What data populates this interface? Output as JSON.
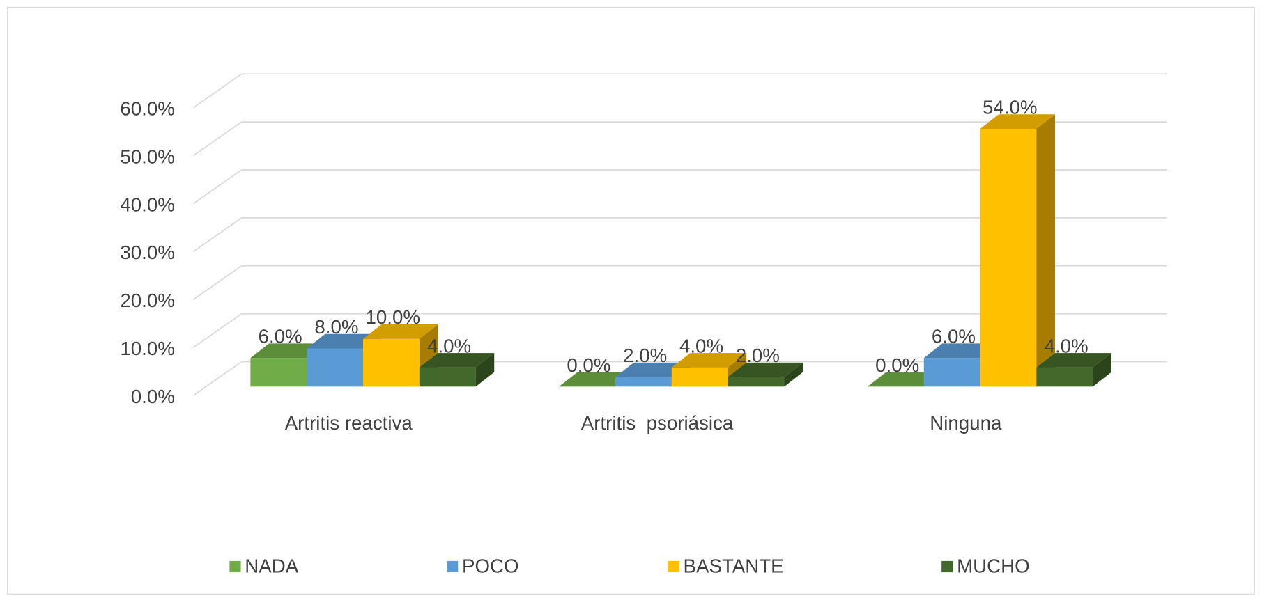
{
  "chart_data": {
    "type": "bar3d",
    "categories": [
      "Artritis reactiva",
      "Artritis  psoriásica",
      "Ninguna"
    ],
    "series": [
      {
        "name": "NADA",
        "color": "#70ad47",
        "values": [
          6,
          0,
          0
        ],
        "value_labels": [
          "6.0%",
          "0.0%",
          "0.0%"
        ]
      },
      {
        "name": "POCO",
        "color": "#5b9bd5",
        "values": [
          8,
          2,
          6
        ],
        "value_labels": [
          "8.0%",
          "2.0%",
          "6.0%"
        ]
      },
      {
        "name": "BASTANTE",
        "color": "#ffc000",
        "values": [
          10,
          4,
          54
        ],
        "value_labels": [
          "10.0%",
          "4.0%",
          "54.0%"
        ]
      },
      {
        "name": "MUCHO",
        "color": "#43682b",
        "values": [
          4,
          2,
          4
        ],
        "value_labels": [
          "4.0%",
          "2.0%",
          "4.0%"
        ]
      }
    ],
    "ylim": [
      0,
      60
    ],
    "yticks": [
      {
        "value": 0,
        "label": "0.0%"
      },
      {
        "value": 10,
        "label": "10.0%"
      },
      {
        "value": 20,
        "label": "20.0%"
      },
      {
        "value": 30,
        "label": "30.0%"
      },
      {
        "value": 40,
        "label": "40.0%"
      },
      {
        "value": 50,
        "label": "50.0%"
      },
      {
        "value": 60,
        "label": "60.0%"
      }
    ],
    "grid": true,
    "legend": "bottom"
  }
}
